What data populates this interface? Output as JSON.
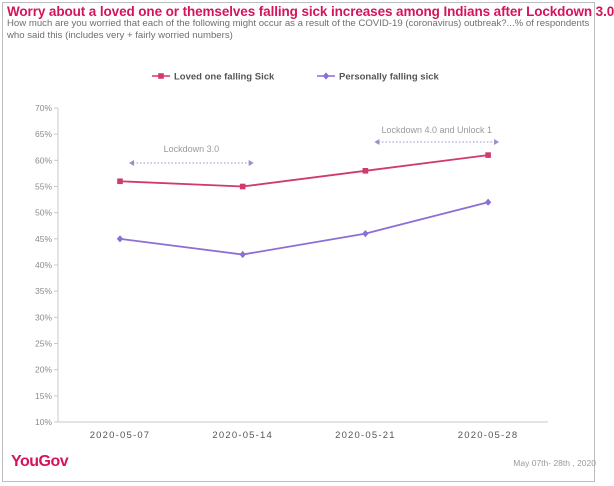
{
  "header": {
    "title": "Worry about a loved one or themselves falling sick increases among Indians after Lockdown 3.0",
    "subtitle": "How much are you worried that each of the following might occur as a result of the COVID-19 (coronavirus) outbreak?...% of respondents who said this (includes very + fairly worried numbers)"
  },
  "footer": {
    "logo": "YouGov",
    "source": "May 07th- 28th , 2020"
  },
  "colors": {
    "brand": "#d4145a",
    "series_loved_one": "#d03a6e",
    "series_personal": "#8c6fd6",
    "annotation": "#9a8fc9"
  },
  "chart_data": {
    "type": "line",
    "title": "",
    "xlabel": "",
    "ylabel": "",
    "x": [
      "2020-05-07",
      "2020-05-14",
      "2020-05-21",
      "2020-05-28"
    ],
    "ylim": [
      10,
      70
    ],
    "yticks": [
      10,
      15,
      20,
      25,
      30,
      35,
      40,
      45,
      50,
      55,
      60,
      65,
      70
    ],
    "ytick_suffix": "%",
    "grid": false,
    "legend_position": "top",
    "series": [
      {
        "name": "Loved one falling Sick",
        "values": [
          56,
          55,
          58,
          61
        ],
        "color": "#d03a6e",
        "marker": "square"
      },
      {
        "name": "Personally falling sick",
        "values": [
          45,
          42,
          46,
          52
        ],
        "color": "#8c6fd6",
        "marker": "diamond"
      }
    ],
    "annotations": [
      {
        "text": "Lockdown 3.0",
        "x_start": "2020-05-07",
        "x_end": "2020-05-14"
      },
      {
        "text": "Lockdown 4.0 and Unlock 1",
        "x_start": "2020-05-21",
        "x_end": "2020-05-28"
      }
    ]
  }
}
